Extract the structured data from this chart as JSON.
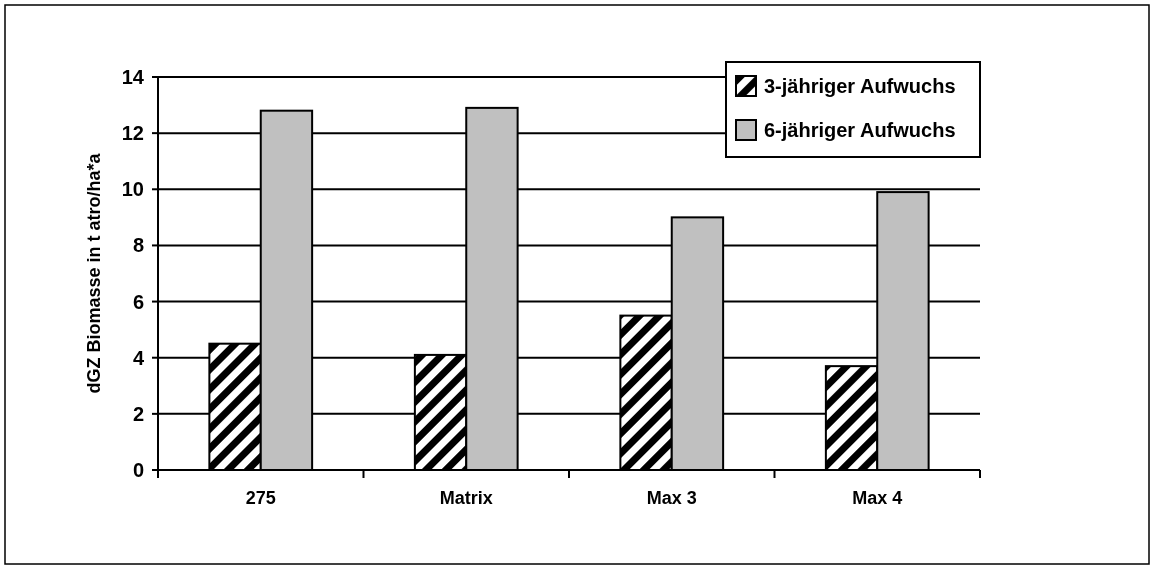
{
  "chart_data": {
    "type": "bar",
    "ylabel": "dGZ Biomasse in t atro/ha*a",
    "categories": [
      "275",
      "Matrix",
      "Max 3",
      "Max 4"
    ],
    "series": [
      {
        "name": "3-jähriger Aufwuchs",
        "color": "#000000",
        "values": [
          4.5,
          4.1,
          5.5,
          3.7
        ]
      },
      {
        "name": "6-jähriger Aufwuchs",
        "color": "#c0c0c0",
        "values": [
          12.8,
          12.9,
          9.0,
          9.9
        ]
      }
    ],
    "ylim": [
      0,
      14
    ],
    "yticks": [
      0,
      2,
      4,
      6,
      8,
      10,
      12,
      14
    ],
    "grid": "y",
    "legend": "top right"
  }
}
